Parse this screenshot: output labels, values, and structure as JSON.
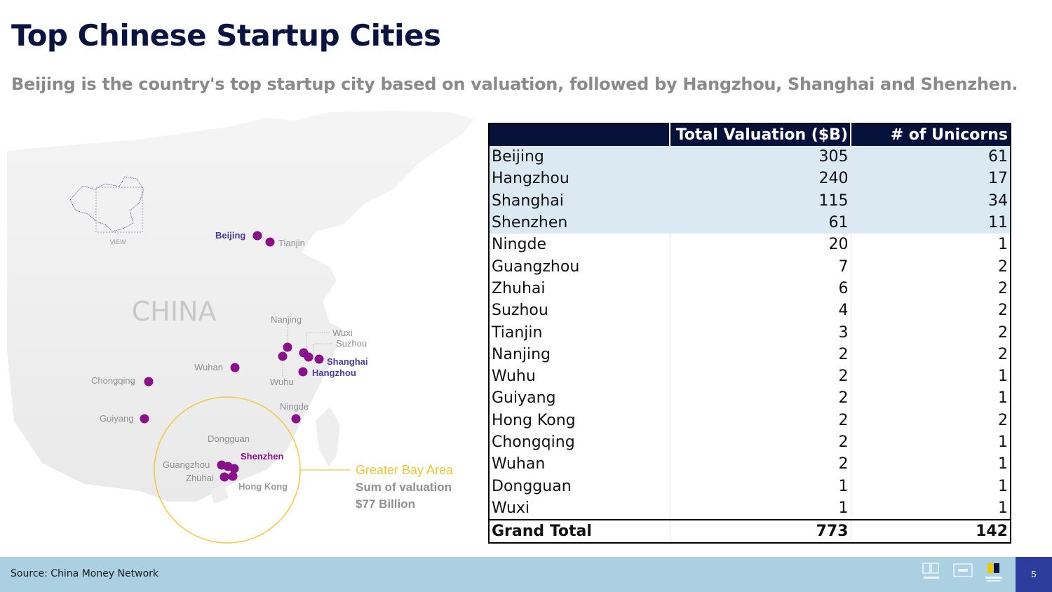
{
  "header": {
    "title": "Top Chinese Startup Cities",
    "subtitle": "Beijing is the country's top startup city based on valuation, followed by Hangzhou, Shanghai and Shenzhen."
  },
  "map": {
    "inset_label": "VIEW",
    "country_label": "CHINA",
    "cities": {
      "beijing": "Beijing",
      "tianjin": "Tianjin",
      "nanjing": "Nanjing",
      "wuxi": "Wuxi",
      "suzhou": "Suzhou",
      "shanghai": "Shanghai",
      "hangzhou": "Hangzhou",
      "wuhan": "Wuhan",
      "wuhu": "Wuhu",
      "chongqing": "Chongqing",
      "ningde": "Ningde",
      "guiyang": "Guiyang",
      "dongguan": "Dongguan",
      "shenzhen": "Shenzhen",
      "guangzhou": "Guangzhou",
      "zhuhai": "Zhuhai",
      "hongkong": "Hong Kong"
    },
    "gba_title": "Greater Bay Area",
    "gba_line1": "Sum of valuation",
    "gba_line2": "$77 Billion",
    "colors": {
      "dot": "#8a0f8a",
      "highlight_label": "#4b3aa0",
      "gba": "#f5c842"
    }
  },
  "table": {
    "headers": [
      "",
      "Total Valuation ($B)",
      "# of Unicorns"
    ],
    "rows": [
      {
        "city": "Beijing",
        "valuation": "305",
        "unicorns": "61"
      },
      {
        "city": "Hangzhou",
        "valuation": "240",
        "unicorns": "17"
      },
      {
        "city": "Shanghai",
        "valuation": "115",
        "unicorns": "34"
      },
      {
        "city": "Shenzhen",
        "valuation": "61",
        "unicorns": "11"
      },
      {
        "city": "Ningde",
        "valuation": "20",
        "unicorns": "1"
      },
      {
        "city": "Guangzhou",
        "valuation": "7",
        "unicorns": "2"
      },
      {
        "city": "Zhuhai",
        "valuation": "6",
        "unicorns": "2"
      },
      {
        "city": "Suzhou",
        "valuation": "4",
        "unicorns": "2"
      },
      {
        "city": "Tianjin",
        "valuation": "3",
        "unicorns": "2"
      },
      {
        "city": "Nanjing",
        "valuation": "2",
        "unicorns": "2"
      },
      {
        "city": "Wuhu",
        "valuation": "2",
        "unicorns": "1"
      },
      {
        "city": "Guiyang",
        "valuation": "2",
        "unicorns": "1"
      },
      {
        "city": "Hong Kong",
        "valuation": "2",
        "unicorns": "2"
      },
      {
        "city": "Chongqing",
        "valuation": "2",
        "unicorns": "1"
      },
      {
        "city": "Wuhan",
        "valuation": "2",
        "unicorns": "1"
      },
      {
        "city": "Dongguan",
        "valuation": "1",
        "unicorns": "1"
      },
      {
        "city": "Wuxi",
        "valuation": "1",
        "unicorns": "1"
      }
    ],
    "total": {
      "city": "Grand Total",
      "valuation": "773",
      "unicorns": "142"
    },
    "colors": {
      "header_bg": "#07123a",
      "highlight_bg": "#dbe9f3"
    }
  },
  "footer": {
    "source": "Source: China Money Network",
    "page_number": "5"
  }
}
